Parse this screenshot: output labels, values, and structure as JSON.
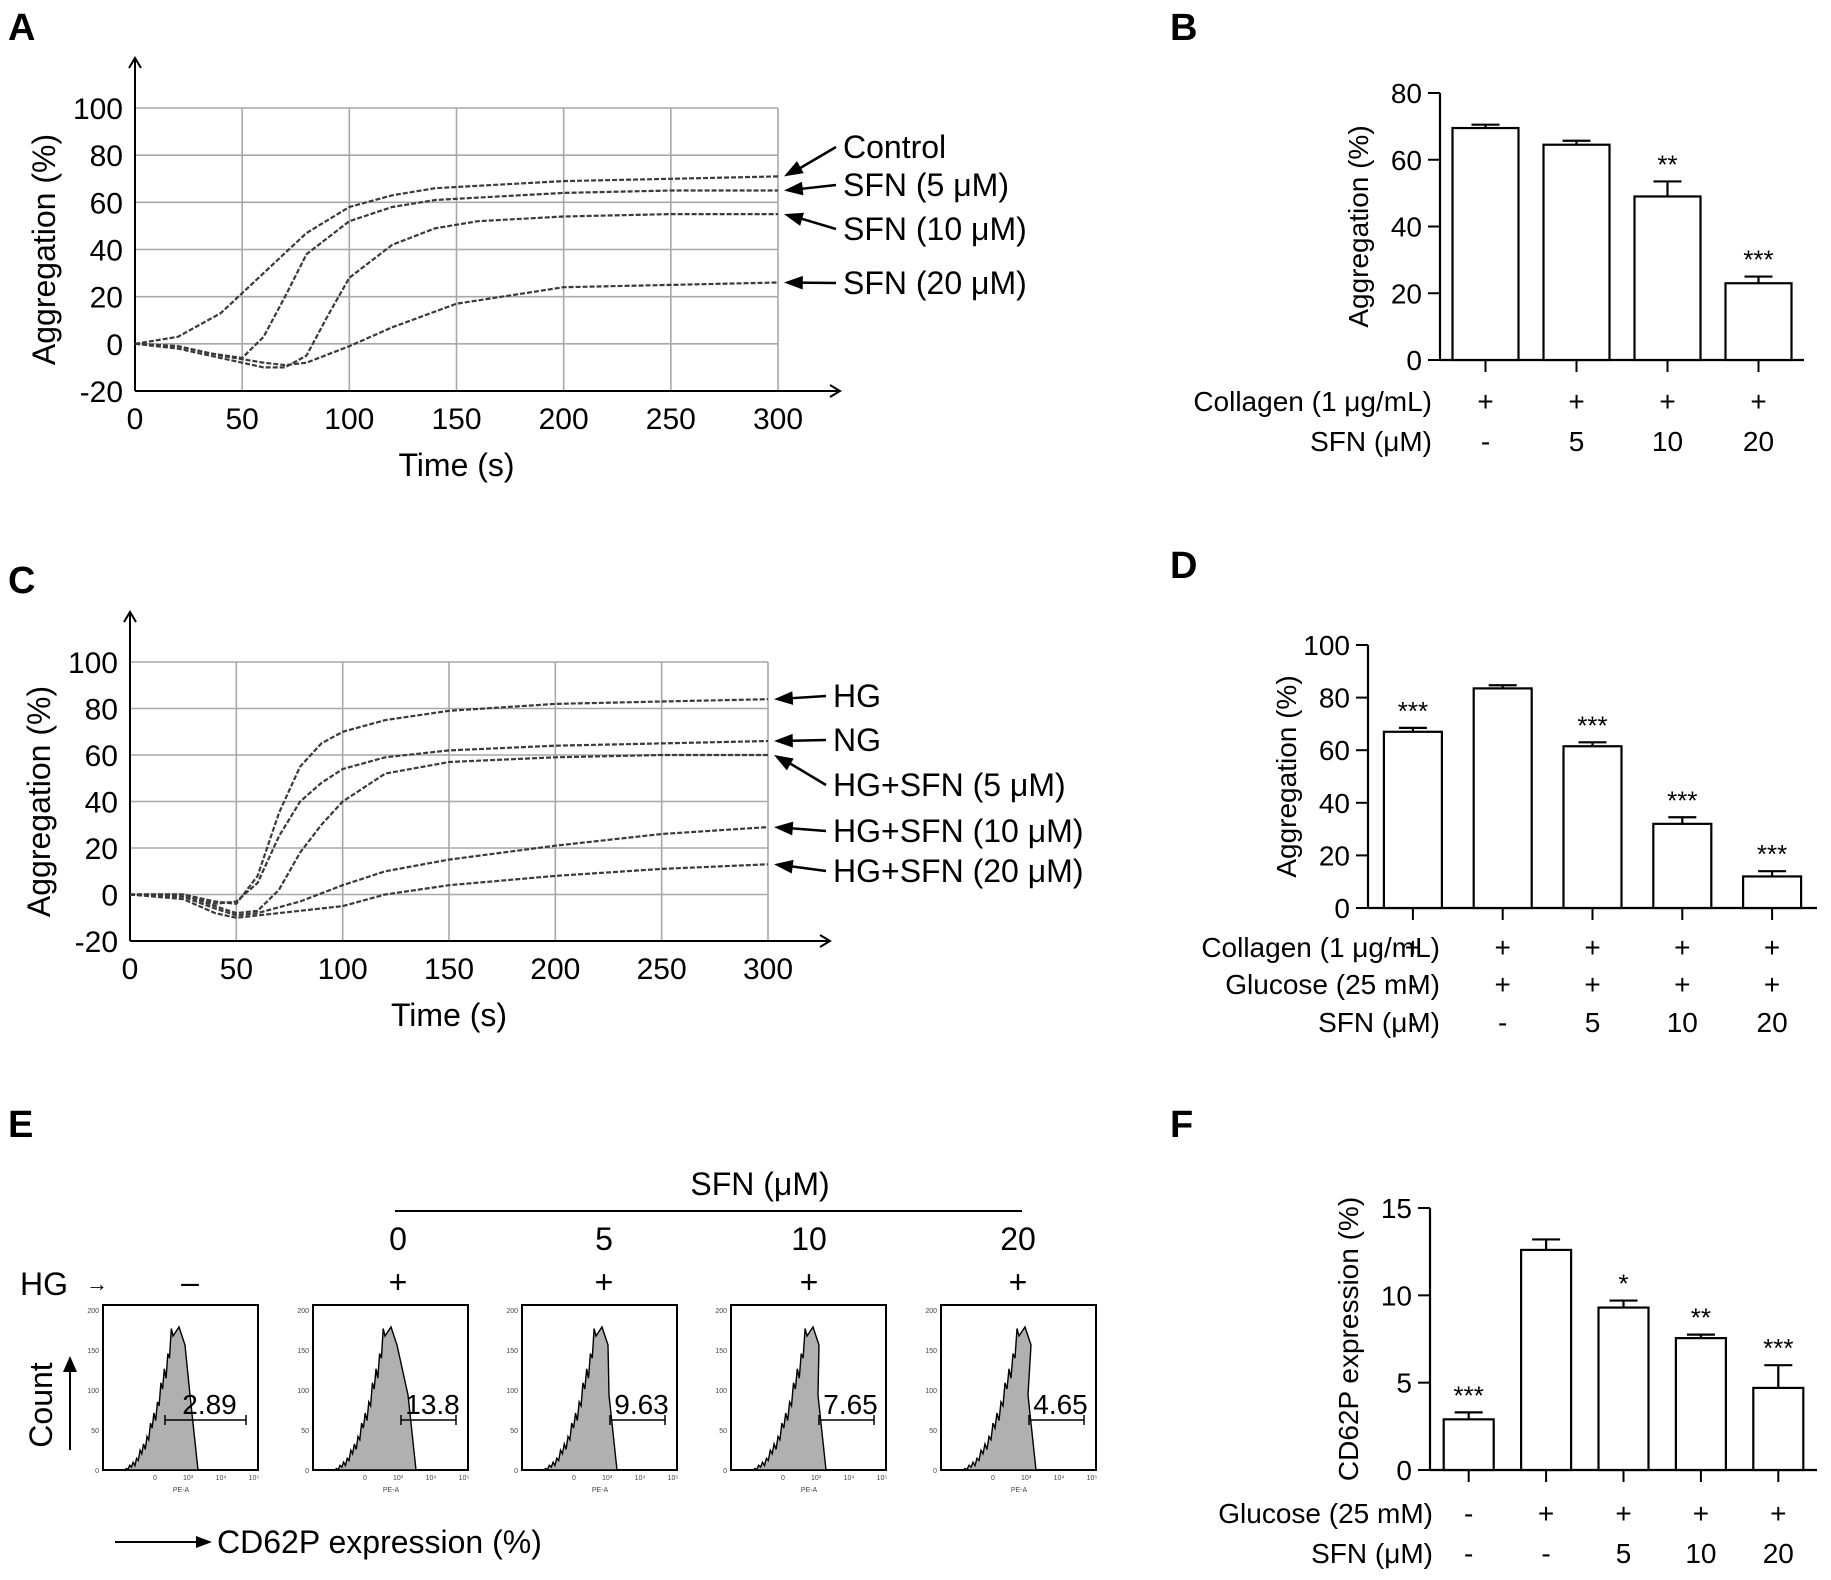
{
  "panels": {
    "A": {
      "label": "A"
    },
    "B": {
      "label": "B"
    },
    "C": {
      "label": "C"
    },
    "D": {
      "label": "D"
    },
    "E": {
      "label": "E"
    },
    "F": {
      "label": "F"
    }
  },
  "chart_data": [
    {
      "id": "A",
      "type": "line",
      "xlabel": "Time (s)",
      "ylabel": "Aggregation (%)",
      "xlim": [
        0,
        300
      ],
      "ylim": [
        -20,
        100
      ],
      "xticks": [
        0,
        50,
        100,
        150,
        200,
        250,
        300
      ],
      "yticks": [
        -20,
        0,
        20,
        40,
        60,
        80,
        100
      ],
      "grid": true,
      "series": [
        {
          "name": "Control",
          "x": [
            0,
            20,
            40,
            60,
            80,
            100,
            120,
            140,
            160,
            200,
            250,
            300
          ],
          "y": [
            0,
            3,
            13,
            30,
            47,
            58,
            63,
            66,
            67,
            69,
            70,
            71
          ]
        },
        {
          "name": "SFN (5 μM)",
          "x": [
            0,
            20,
            35,
            50,
            60,
            70,
            80,
            100,
            120,
            140,
            160,
            200,
            250,
            300
          ],
          "y": [
            0,
            -1,
            -4,
            -6,
            3,
            20,
            38,
            52,
            58,
            61,
            62,
            64,
            65,
            65
          ]
        },
        {
          "name": "SFN (10 μM)",
          "x": [
            0,
            20,
            40,
            60,
            70,
            80,
            90,
            100,
            120,
            140,
            160,
            200,
            250,
            300
          ],
          "y": [
            0,
            -2,
            -6,
            -10,
            -10,
            -5,
            12,
            28,
            42,
            49,
            52,
            54,
            55,
            55
          ]
        },
        {
          "name": "SFN (20 μM)",
          "x": [
            0,
            20,
            40,
            60,
            70,
            80,
            100,
            120,
            150,
            200,
            250,
            300
          ],
          "y": [
            0,
            -1,
            -5,
            -8,
            -9,
            -8,
            -1,
            7,
            17,
            24,
            25,
            26
          ]
        }
      ]
    },
    {
      "id": "B",
      "type": "bar",
      "ylabel": "Aggregation (%)",
      "ylim": [
        0,
        80
      ],
      "yticks": [
        0,
        20,
        40,
        60,
        80
      ],
      "values": [
        69.5,
        64.5,
        49,
        23
      ],
      "errors": [
        1,
        1.2,
        4.5,
        2
      ],
      "significance": [
        "",
        "",
        "**",
        "***"
      ],
      "conditions": [
        {
          "label": "Collagen (1 μg/mL)",
          "values": [
            "+",
            "+",
            "+",
            "+"
          ]
        },
        {
          "label": "SFN (μM)",
          "values": [
            "-",
            "5",
            "10",
            "20"
          ]
        }
      ]
    },
    {
      "id": "C",
      "type": "line",
      "xlabel": "Time (s)",
      "ylabel": "Aggregation (%)",
      "xlim": [
        0,
        300
      ],
      "ylim": [
        -20,
        100
      ],
      "xticks": [
        0,
        50,
        100,
        150,
        200,
        250,
        300
      ],
      "yticks": [
        -20,
        0,
        20,
        40,
        60,
        80,
        100
      ],
      "grid": true,
      "series": [
        {
          "name": "HG",
          "x": [
            0,
            25,
            40,
            50,
            60,
            70,
            80,
            90,
            100,
            120,
            150,
            200,
            250,
            300
          ],
          "y": [
            0,
            0,
            -3,
            -4,
            8,
            35,
            55,
            65,
            70,
            75,
            79,
            82,
            83,
            84
          ]
        },
        {
          "name": "NG",
          "x": [
            0,
            25,
            40,
            50,
            60,
            70,
            80,
            90,
            100,
            120,
            150,
            200,
            250,
            300
          ],
          "y": [
            0,
            0,
            -4,
            -3,
            5,
            25,
            40,
            48,
            54,
            59,
            62,
            64,
            65,
            66
          ]
        },
        {
          "name": "HG+SFN (5 μM)",
          "x": [
            0,
            25,
            40,
            50,
            60,
            70,
            80,
            90,
            100,
            120,
            150,
            200,
            250,
            300
          ],
          "y": [
            0,
            0,
            -5,
            -8,
            -7,
            2,
            18,
            30,
            40,
            52,
            57,
            59,
            60,
            60
          ]
        },
        {
          "name": "HG+SFN (10 μM)",
          "x": [
            0,
            25,
            40,
            50,
            60,
            80,
            100,
            120,
            150,
            200,
            250,
            300
          ],
          "y": [
            0,
            -1,
            -6,
            -9,
            -8,
            -3,
            4,
            10,
            15,
            21,
            26,
            29
          ]
        },
        {
          "name": "HG+SFN (20 μM)",
          "x": [
            0,
            25,
            40,
            50,
            60,
            80,
            100,
            120,
            150,
            200,
            250,
            300
          ],
          "y": [
            0,
            -2,
            -8,
            -10,
            -9,
            -7,
            -5,
            0,
            4,
            8,
            11,
            13
          ]
        }
      ]
    },
    {
      "id": "D",
      "type": "bar",
      "ylabel": "Aggregation (%)",
      "ylim": [
        0,
        100
      ],
      "yticks": [
        0,
        20,
        40,
        60,
        80,
        100
      ],
      "values": [
        67,
        83.5,
        61.5,
        32,
        12
      ],
      "errors": [
        1.5,
        1.2,
        1.5,
        2.5,
        2
      ],
      "significance": [
        "***",
        "",
        "***",
        "***",
        "***"
      ],
      "conditions": [
        {
          "label": "Collagen (1 μg/mL)",
          "values": [
            "+",
            "+",
            "+",
            "+",
            "+"
          ]
        },
        {
          "label": "Glucose (25 mM)",
          "values": [
            "-",
            "+",
            "+",
            "+",
            "+"
          ]
        },
        {
          "label": "SFN (μM)",
          "values": [
            "-",
            "-",
            "5",
            "10",
            "20"
          ]
        }
      ]
    },
    {
      "id": "F",
      "type": "bar",
      "ylabel": "CD62P expression (%)",
      "ylim": [
        0,
        15
      ],
      "yticks": [
        0,
        5,
        10,
        15
      ],
      "values": [
        2.9,
        12.6,
        9.3,
        7.55,
        4.7
      ],
      "errors": [
        0.4,
        0.6,
        0.4,
        0.2,
        1.3
      ],
      "significance": [
        "***",
        "",
        "*",
        "**",
        "***"
      ],
      "conditions": [
        {
          "label": "Glucose (25 mM)",
          "values": [
            "-",
            "+",
            "+",
            "+",
            "+"
          ]
        },
        {
          "label": "SFN (μM)",
          "values": [
            "-",
            "-",
            "5",
            "10",
            "20"
          ]
        }
      ]
    }
  ],
  "flow": {
    "sfn_header": "SFN (μM)",
    "hg_label": "HG",
    "hg_arrow": "→",
    "count_label": "Count",
    "x_axis_label": "CD62P expression (%)",
    "axis_small_label": "PE-A",
    "y_tick_labels": [
      "200",
      "150",
      "100",
      "50",
      "0"
    ],
    "x_tick_labels": [
      "0",
      "10³",
      "10⁴",
      "10⁵"
    ],
    "histograms": [
      {
        "dose": "",
        "hg": "–",
        "value": "2.89"
      },
      {
        "dose": "0",
        "hg": "+",
        "value": "13.8"
      },
      {
        "dose": "5",
        "hg": "+",
        "value": "9.63"
      },
      {
        "dose": "10",
        "hg": "+",
        "value": "7.65"
      },
      {
        "dose": "20",
        "hg": "+",
        "value": "4.65"
      }
    ]
  }
}
